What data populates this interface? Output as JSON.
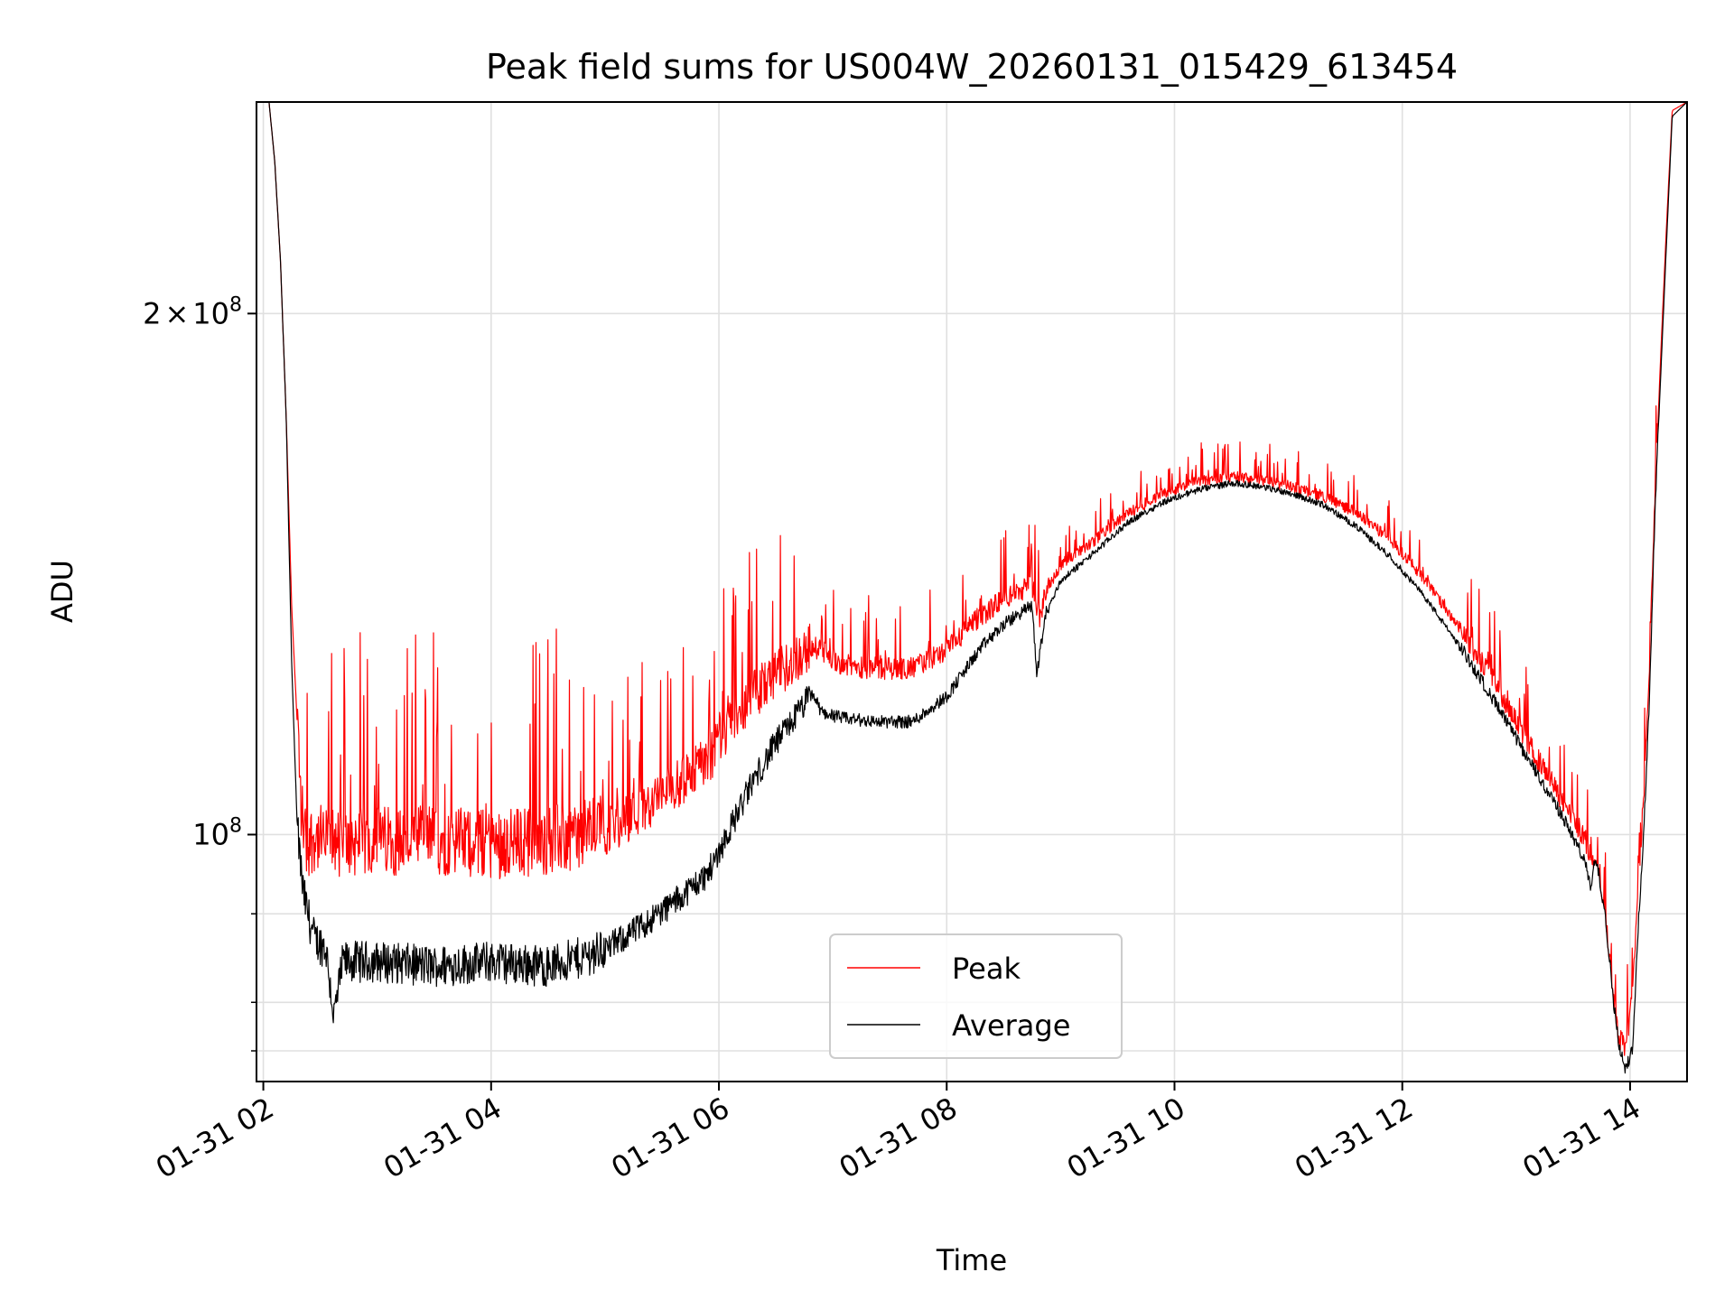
{
  "chart_data": {
    "type": "line",
    "title": "Peak field sums for US004W_20260131_015429_613454",
    "xlabel": "Time",
    "ylabel": "ADU",
    "x_unit": "hours",
    "xlim": [
      1.94,
      14.5
    ],
    "ylim": [
      72000000,
      265000000
    ],
    "yscale": "log",
    "grid": true,
    "x_ticks": [
      2,
      4,
      6,
      8,
      10,
      12,
      14
    ],
    "x_tick_labels": [
      "01-31 02",
      "01-31 04",
      "01-31 06",
      "01-31 08",
      "01-31 10",
      "01-31 12",
      "01-31 14"
    ],
    "y_major_ticks": [
      100000000,
      200000000
    ],
    "y_major_tick_mantissa": [
      "",
      "2"
    ],
    "y_major_tick_base": [
      "10",
      "10"
    ],
    "y_major_tick_exp": [
      "8",
      "8"
    ],
    "y_major_tick_times": [
      "",
      "×"
    ],
    "y_minor_ticks": [
      75000000,
      80000000,
      90000000
    ],
    "legend": {
      "location": "lower-center",
      "entries": [
        "Peak",
        "Average"
      ]
    },
    "series": [
      {
        "name": "Peak",
        "color": "#ff0000",
        "x": [
          1.94,
          2.05,
          2.1,
          2.15,
          2.2,
          2.25,
          2.3,
          2.33,
          2.38,
          2.45,
          2.55,
          2.7,
          3.0,
          3.5,
          4.0,
          4.5,
          4.8,
          5.0,
          5.3,
          5.6,
          5.9,
          6.1,
          6.3,
          6.5,
          6.75,
          6.85,
          7.1,
          7.4,
          7.7,
          8.0,
          8.3,
          8.5,
          8.75,
          8.79,
          8.82,
          8.87,
          9.0,
          9.3,
          9.6,
          9.9,
          10.2,
          10.5,
          10.7,
          11.0,
          11.3,
          11.6,
          11.9,
          12.2,
          12.5,
          12.8,
          13.1,
          13.4,
          13.6,
          13.7,
          13.78,
          13.85,
          13.9,
          13.96,
          14.02,
          14.07,
          14.12,
          14.17,
          14.22,
          14.27,
          14.32,
          14.37,
          14.5
        ],
        "y": [
          265000000,
          265000000,
          245000000,
          215000000,
          175000000,
          135000000,
          115000000,
          102000000,
          97000000,
          98000000,
          97000000,
          97000000,
          97500000,
          97500000,
          97000000,
          97500000,
          98000000,
          99000000,
          102000000,
          105000000,
          109000000,
          114000000,
          119000000,
          122000000,
          126000000,
          127500000,
          124500000,
          124000000,
          124000000,
          127000000,
          133000000,
          136000000,
          138500000,
          135000000,
          132000000,
          138000000,
          142500000,
          147500000,
          153000000,
          157000000,
          159500000,
          160500000,
          160000000,
          158500000,
          156500000,
          153000000,
          147500000,
          140000000,
          131000000,
          122000000,
          112500000,
          104000000,
          99000000,
          94500000,
          89000000,
          81000000,
          76000000,
          75000000,
          80000000,
          92000000,
          105000000,
          125000000,
          158000000,
          190000000,
          225000000,
          262000000,
          265000000
        ]
      },
      {
        "name": "Average",
        "color": "#000000",
        "x": [
          1.94,
          2.05,
          2.1,
          2.15,
          2.2,
          2.25,
          2.3,
          2.35,
          2.4,
          2.45,
          2.55,
          2.62,
          2.7,
          3.0,
          3.5,
          4.0,
          4.5,
          4.8,
          5.0,
          5.3,
          5.6,
          5.9,
          6.1,
          6.3,
          6.5,
          6.75,
          6.82,
          6.9,
          7.1,
          7.4,
          7.7,
          8.0,
          8.3,
          8.5,
          8.75,
          8.79,
          8.82,
          8.87,
          9.0,
          9.3,
          9.6,
          9.9,
          10.2,
          10.5,
          10.7,
          11.0,
          11.3,
          11.6,
          11.9,
          12.2,
          12.5,
          12.8,
          13.1,
          13.4,
          13.6,
          13.65,
          13.7,
          13.78,
          13.85,
          13.9,
          13.96,
          14.02,
          14.07,
          14.12,
          14.17,
          14.22,
          14.27,
          14.32,
          14.37,
          14.5
        ],
        "y": [
          265000000,
          265000000,
          245000000,
          215000000,
          175000000,
          125000000,
          100000000,
          92000000,
          89000000,
          86500000,
          85500000,
          78000000,
          84000000,
          84000000,
          83500000,
          84000000,
          83500000,
          84500000,
          85500000,
          88000000,
          91000000,
          94500000,
          100500000,
          107000000,
          112500000,
          118500000,
          120500000,
          117500000,
          116500000,
          116000000,
          116000000,
          120000000,
          128000000,
          132000000,
          135500000,
          123500000,
          127500000,
          134000000,
          140000000,
          145500000,
          151500000,
          155500000,
          158000000,
          159500000,
          159000000,
          157500000,
          155000000,
          150500000,
          144500000,
          137000000,
          128500000,
          119500000,
          110500000,
          102500000,
          96500000,
          93000000,
          97000000,
          90000000,
          80500000,
          75500000,
          73000000,
          75000000,
          88000000,
          100000000,
          120000000,
          155000000,
          185000000,
          220000000,
          260000000,
          265000000
        ]
      }
    ]
  }
}
